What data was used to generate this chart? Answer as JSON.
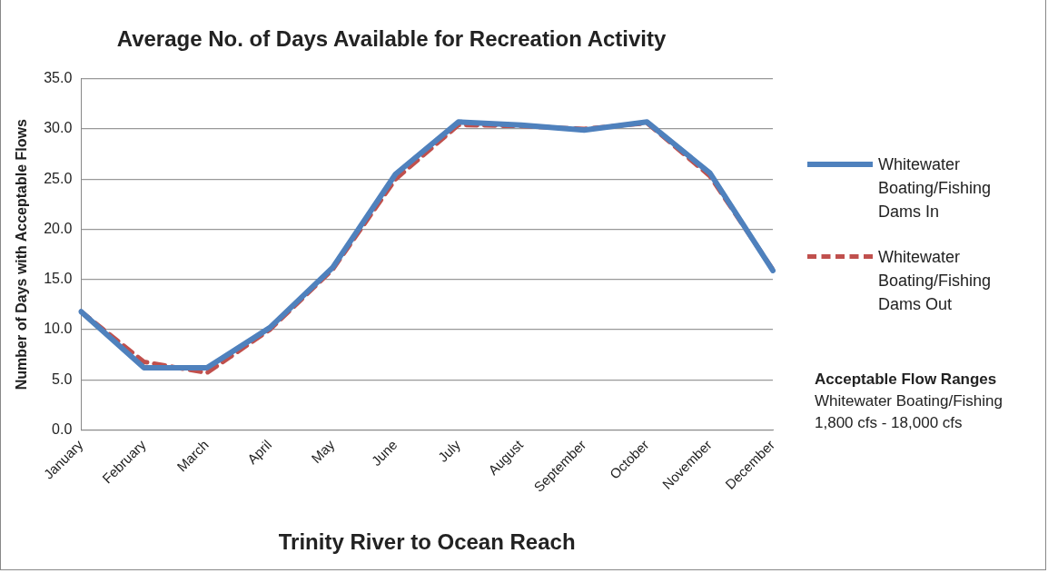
{
  "chart_data": {
    "type": "line",
    "title": "Average No. of Days Available for Recreation Activity",
    "xlabel": "Trinity River to Ocean Reach",
    "ylabel": "Number of Days with Acceptable Flows",
    "categories": [
      "January",
      "February",
      "March",
      "April",
      "May",
      "June",
      "July",
      "August",
      "September",
      "October",
      "November",
      "December"
    ],
    "series": [
      {
        "name": "Whitewater Boating/Fishing Dams In",
        "color": "#4f81bd",
        "line_style": "solid",
        "values": [
          11.8,
          6.2,
          6.2,
          10.2,
          16.2,
          25.5,
          30.7,
          30.4,
          29.9,
          30.7,
          25.6,
          15.9
        ]
      },
      {
        "name": "Whitewater Boating/Fishing Dams Out",
        "color": "#c0504d",
        "line_style": "dashed",
        "values": [
          11.8,
          6.8,
          5.7,
          10.0,
          16.0,
          25.0,
          30.4,
          30.3,
          30.0,
          30.6,
          25.3,
          16.0
        ]
      }
    ],
    "ylim": [
      0,
      35
    ],
    "yticks": [
      {
        "value": 0,
        "label": "0.0"
      },
      {
        "value": 5,
        "label": "5.0"
      },
      {
        "value": 10,
        "label": "10.0"
      },
      {
        "value": 15,
        "label": "15.0"
      },
      {
        "value": 20,
        "label": "20.0"
      },
      {
        "value": 25,
        "label": "25.0"
      },
      {
        "value": 30,
        "label": "30.0"
      },
      {
        "value": 35,
        "label": "35.0"
      }
    ],
    "grid": "y",
    "legend": "right",
    "marker": "none",
    "annotations": [
      "Acceptable Flow Ranges",
      "Whitewater Boating/Fishing",
      "1,800 cfs - 18,000 cfs"
    ]
  }
}
